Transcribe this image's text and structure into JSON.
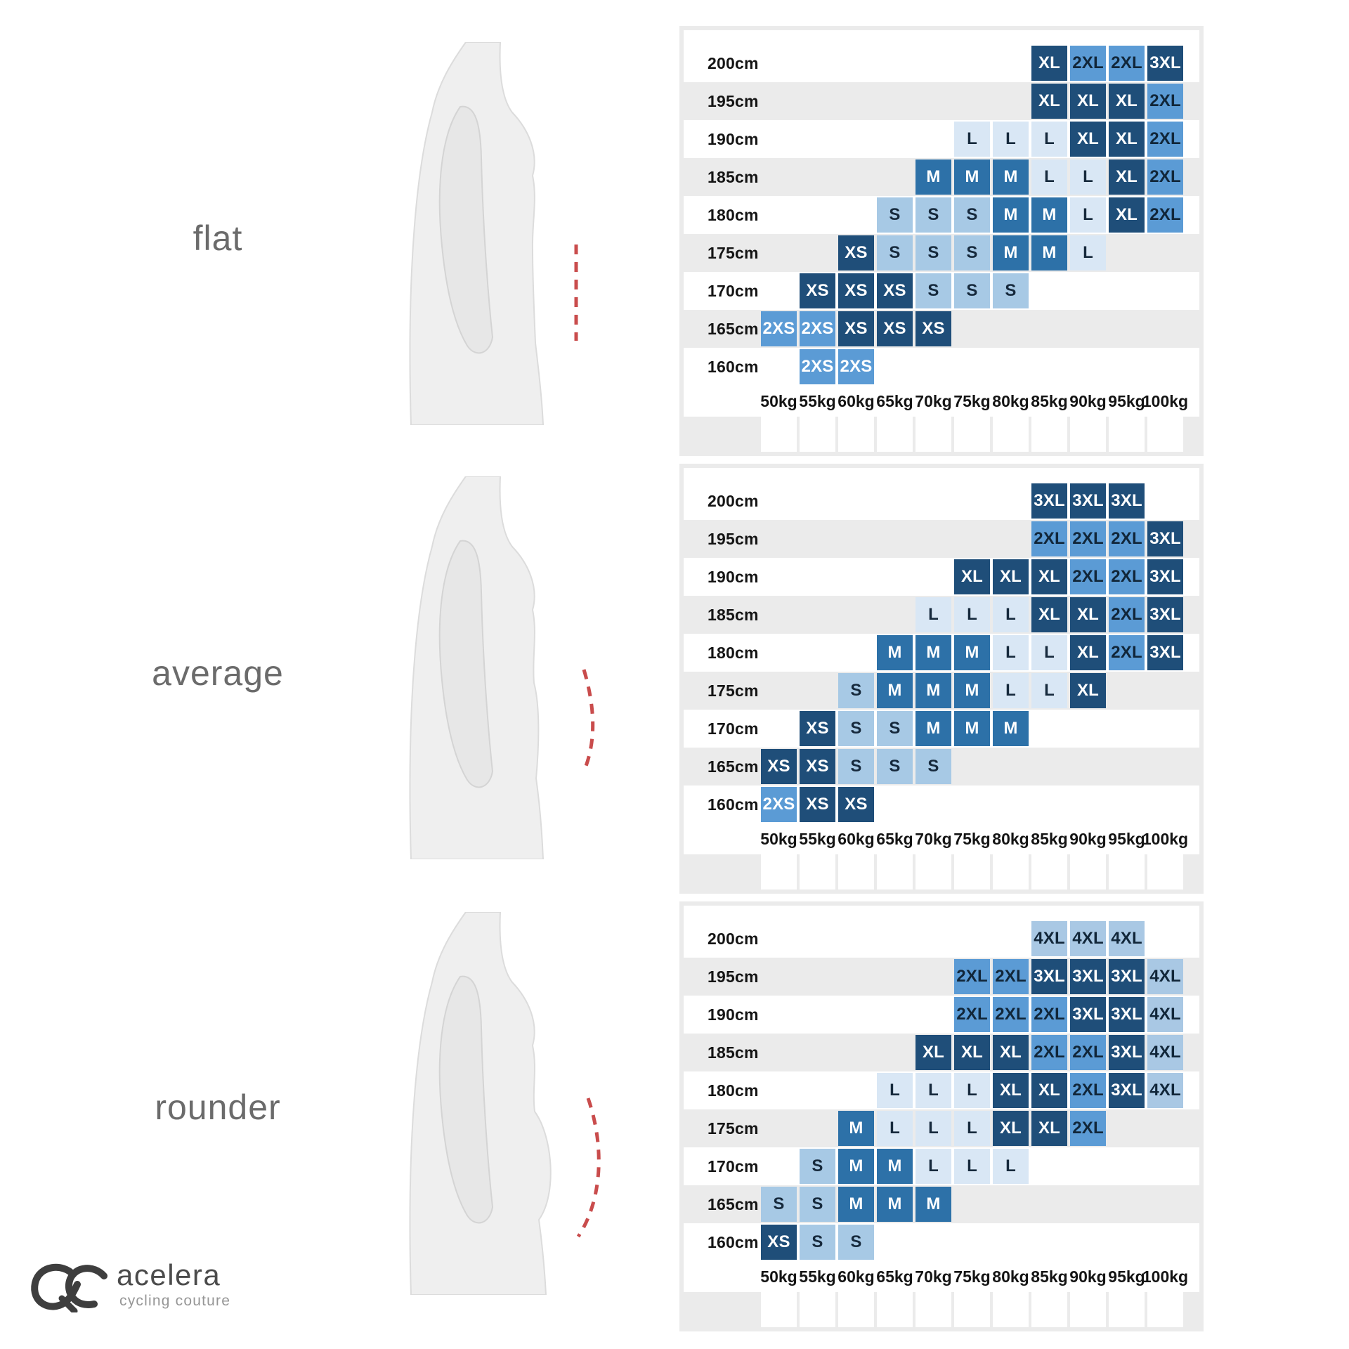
{
  "brand": {
    "name": "acelera",
    "tagline": "cycling couture"
  },
  "body_types": [
    {
      "label": "flat",
      "belly_profile": "straight dashed line"
    },
    {
      "label": "average",
      "belly_profile": "slightly curved dashed line"
    },
    {
      "label": "rounder",
      "belly_profile": "strongly curved dashed line"
    }
  ],
  "axes": {
    "height_labels": [
      "200cm",
      "195cm",
      "190cm",
      "185cm",
      "180cm",
      "175cm",
      "170cm",
      "165cm",
      "160cm"
    ],
    "weight_labels": [
      "50kg",
      "55kg",
      "60kg",
      "65kg",
      "70kg",
      "75kg",
      "80kg",
      "85kg",
      "90kg",
      "95kg",
      "100kg"
    ]
  },
  "size_styles": {
    "2XS": {
      "bg": "#5b9bd5",
      "text": "#ffffff"
    },
    "XS": {
      "bg": "#1f4e79",
      "text": "#ffffff"
    },
    "S": {
      "bg": "#a7c9e5",
      "text": "#16293c"
    },
    "M": {
      "bg": "#2d71a8",
      "text": "#ffffff"
    },
    "L": {
      "bg": "#d9e7f5",
      "text": "#16293c"
    },
    "XL": {
      "bg": "#1f4e79",
      "text": "#ffffff"
    },
    "2XL": {
      "bg": "#5b9bd5",
      "text": "#112639"
    },
    "3XL": {
      "bg": "#1f4e79",
      "text": "#ffffff"
    },
    "4XL": {
      "bg": "#a9c8e4",
      "text": "#112639"
    }
  },
  "ui_colors": {
    "row_alt": "#ebebeb",
    "panel_frame": "#ebebeb",
    "footer_stripe": "#ffffff",
    "belly_line_red": "#c94c4c",
    "body_label_gray": "#6b6b6b"
  },
  "chart_data": [
    {
      "type": "heatmap",
      "body_type": "flat",
      "x_categories": [
        "50kg",
        "55kg",
        "60kg",
        "65kg",
        "70kg",
        "75kg",
        "80kg",
        "85kg",
        "90kg",
        "95kg",
        "100kg"
      ],
      "y_categories": [
        "200cm",
        "195cm",
        "190cm",
        "185cm",
        "180cm",
        "175cm",
        "170cm",
        "165cm",
        "160cm"
      ],
      "cells": [
        [
          null,
          null,
          null,
          null,
          null,
          null,
          null,
          "XL",
          "2XL",
          "2XL",
          "3XL"
        ],
        [
          null,
          null,
          null,
          null,
          null,
          null,
          null,
          "XL",
          "XL",
          "XL",
          "2XL"
        ],
        [
          null,
          null,
          null,
          null,
          null,
          "L",
          "L",
          "L",
          "XL",
          "XL",
          "2XL"
        ],
        [
          null,
          null,
          null,
          null,
          "M",
          "M",
          "M",
          "L",
          "L",
          "XL",
          "2XL"
        ],
        [
          null,
          null,
          null,
          "S",
          "S",
          "S",
          "M",
          "M",
          "L",
          "XL",
          "2XL"
        ],
        [
          null,
          null,
          "XS",
          "S",
          "S",
          "S",
          "M",
          "M",
          "L",
          null,
          null
        ],
        [
          null,
          "XS",
          "XS",
          "XS",
          "S",
          "S",
          "S",
          null,
          null,
          null,
          null
        ],
        [
          "2XS",
          "2XS",
          "XS",
          "XS",
          "XS",
          null,
          null,
          null,
          null,
          null,
          null
        ],
        [
          null,
          "2XS",
          "2XS",
          null,
          null,
          null,
          null,
          null,
          null,
          null,
          null
        ]
      ]
    },
    {
      "type": "heatmap",
      "body_type": "average",
      "x_categories": [
        "50kg",
        "55kg",
        "60kg",
        "65kg",
        "70kg",
        "75kg",
        "80kg",
        "85kg",
        "90kg",
        "95kg",
        "100kg"
      ],
      "y_categories": [
        "200cm",
        "195cm",
        "190cm",
        "185cm",
        "180cm",
        "175cm",
        "170cm",
        "165cm",
        "160cm"
      ],
      "cells": [
        [
          null,
          null,
          null,
          null,
          null,
          null,
          null,
          "3XL",
          "3XL",
          "3XL",
          null
        ],
        [
          null,
          null,
          null,
          null,
          null,
          null,
          null,
          "2XL",
          "2XL",
          "2XL",
          "3XL"
        ],
        [
          null,
          null,
          null,
          null,
          null,
          "XL",
          "XL",
          "XL",
          "2XL",
          "2XL",
          "3XL"
        ],
        [
          null,
          null,
          null,
          null,
          "L",
          "L",
          "L",
          "XL",
          "XL",
          "2XL",
          "3XL"
        ],
        [
          null,
          null,
          null,
          "M",
          "M",
          "M",
          "L",
          "L",
          "XL",
          "2XL",
          "3XL"
        ],
        [
          null,
          null,
          "S",
          "M",
          "M",
          "M",
          "L",
          "L",
          "XL",
          null,
          null
        ],
        [
          null,
          "XS",
          "S",
          "S",
          "M",
          "M",
          "M",
          null,
          null,
          null,
          null
        ],
        [
          "XS",
          "XS",
          "S",
          "S",
          "S",
          null,
          null,
          null,
          null,
          null,
          null
        ],
        [
          "2XS",
          "XS",
          "XS",
          null,
          null,
          null,
          null,
          null,
          null,
          null,
          null
        ]
      ]
    },
    {
      "type": "heatmap",
      "body_type": "rounder",
      "x_categories": [
        "50kg",
        "55kg",
        "60kg",
        "65kg",
        "70kg",
        "75kg",
        "80kg",
        "85kg",
        "90kg",
        "95kg",
        "100kg"
      ],
      "y_categories": [
        "200cm",
        "195cm",
        "190cm",
        "185cm",
        "180cm",
        "175cm",
        "170cm",
        "165cm",
        "160cm"
      ],
      "cells": [
        [
          null,
          null,
          null,
          null,
          null,
          null,
          null,
          "4XL",
          "4XL",
          "4XL",
          null
        ],
        [
          null,
          null,
          null,
          null,
          null,
          "2XL",
          "2XL",
          "3XL",
          "3XL",
          "3XL",
          "4XL"
        ],
        [
          null,
          null,
          null,
          null,
          null,
          "2XL",
          "2XL",
          "2XL",
          "3XL",
          "3XL",
          "4XL"
        ],
        [
          null,
          null,
          null,
          null,
          "XL",
          "XL",
          "XL",
          "2XL",
          "2XL",
          "3XL",
          "4XL"
        ],
        [
          null,
          null,
          null,
          "L",
          "L",
          "L",
          "XL",
          "XL",
          "2XL",
          "3XL",
          "4XL"
        ],
        [
          null,
          null,
          "M",
          "L",
          "L",
          "L",
          "XL",
          "XL",
          "2XL",
          null,
          null
        ],
        [
          null,
          "S",
          "M",
          "M",
          "L",
          "L",
          "L",
          null,
          null,
          null,
          null
        ],
        [
          "S",
          "S",
          "M",
          "M",
          "M",
          null,
          null,
          null,
          null,
          null,
          null
        ],
        [
          "XS",
          "S",
          "S",
          null,
          null,
          null,
          null,
          null,
          null,
          null,
          null
        ]
      ]
    }
  ]
}
